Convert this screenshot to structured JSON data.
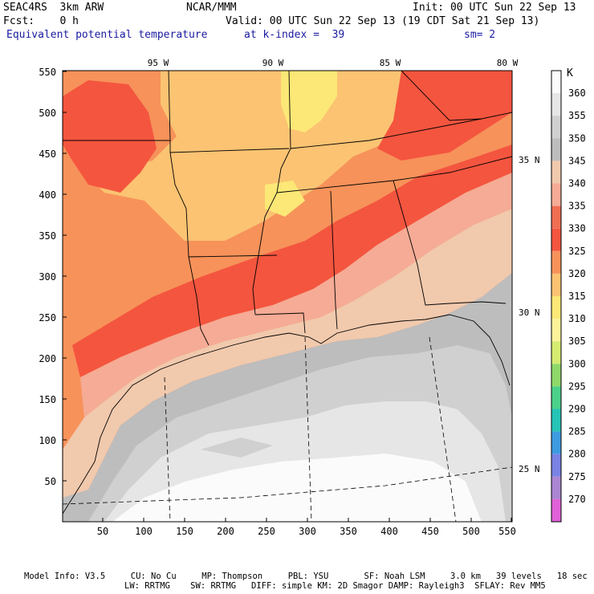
{
  "header": {
    "model": "SEAC4RS  3km ARW",
    "org": "NCAR/MMM",
    "init": "Init: 00 UTC Sun 22 Sep 13",
    "fcst": "Fcst:    0 h",
    "valid": "Valid: 00 UTC Sun 22 Sep 13 (19 CDT Sat 21 Sep 13)",
    "field": "Equivalent potential temperature",
    "level": "at k-index =  39",
    "smooth": "sm= 2"
  },
  "map": {
    "lon_labels": [
      "95 W",
      "90 W",
      "85 W",
      "80 W"
    ],
    "lat_labels": [
      "35 N",
      "30 N",
      "25 N"
    ],
    "x_ticks": [
      "50",
      "100",
      "150",
      "200",
      "250",
      "300",
      "350",
      "400",
      "450",
      "500",
      "550"
    ],
    "y_ticks": [
      "550",
      "500",
      "450",
      "400",
      "350",
      "300",
      "250",
      "200",
      "150",
      "100",
      "50"
    ]
  },
  "colorbar": {
    "unit": "K",
    "levels": [
      {
        "label": "360",
        "color": "#fbfbfb"
      },
      {
        "label": "355",
        "color": "#e6e6e6"
      },
      {
        "label": "350",
        "color": "#d0d0d0"
      },
      {
        "label": "345",
        "color": "#bdbdbd"
      },
      {
        "label": "340",
        "color": "#f1c9ad"
      },
      {
        "label": "335",
        "color": "#f5ab95"
      },
      {
        "label": "330",
        "color": "#f06e52"
      },
      {
        "label": "325",
        "color": "#f4553f"
      },
      {
        "label": "320",
        "color": "#f7925a"
      },
      {
        "label": "315",
        "color": "#fbc372"
      },
      {
        "label": "310",
        "color": "#fce876"
      },
      {
        "label": "305",
        "color": "#fbf29a"
      },
      {
        "label": "300",
        "color": "#d5ec71"
      },
      {
        "label": "295",
        "color": "#8fd96a"
      },
      {
        "label": "290",
        "color": "#4bd08a"
      },
      {
        "label": "285",
        "color": "#26c4b6"
      },
      {
        "label": "280",
        "color": "#3e9be0"
      },
      {
        "label": "275",
        "color": "#7a82e4"
      },
      {
        "label": "270",
        "color": "#ab86d2"
      },
      {
        "label": "",
        "color": "#e061d8"
      }
    ]
  },
  "footer": {
    "line1": "Model Info: V3.5     CU: No Cu     MP: Thompson     PBL: YSU       SF: Noah LSM     3.0 km   39 levels   18 sec",
    "line2": "LW: RRTMG    SW: RRTMG   DIFF: simple KM: 2D Smagor DAMP: Rayleigh3  SFLAY: Rev MM5"
  }
}
